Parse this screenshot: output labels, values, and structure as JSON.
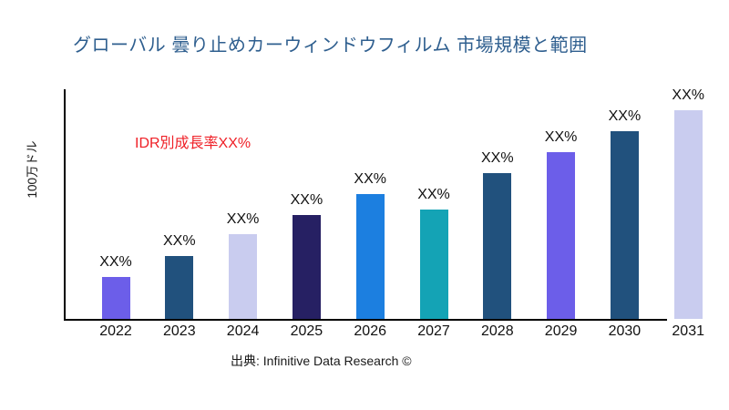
{
  "header": {
    "title": "グローバル 曇り止めカーウィンドウフィルム 市場規模と範囲",
    "title_color": "#2F5F8F"
  },
  "annotation": {
    "text": "IDR別成長率XX%",
    "color": "#EF1F26"
  },
  "footer": {
    "source": "出典: Infinitive Data Research ©"
  },
  "chart_data": {
    "type": "bar",
    "title": "グローバル 曇り止めカーウィンドウフィルム 市場規模と範囲",
    "xlabel": "",
    "ylabel": "100万ドル",
    "categories": [
      "2022",
      "2023",
      "2024",
      "2025",
      "2026",
      "2027",
      "2028",
      "2029",
      "2030",
      "2031"
    ],
    "values": [
      20,
      30,
      40.5,
      50,
      60,
      52.5,
      70,
      80,
      90,
      100
    ],
    "values_note": "relative bar heights, percent of tallest bar; actual figures masked as XX% on chart",
    "value_labels": [
      "XX%",
      "XX%",
      "XX%",
      "XX%",
      "XX%",
      "XX%",
      "XX%",
      "XX%",
      "XX%",
      "XX%"
    ],
    "bar_colors": [
      "#6C5EE9",
      "#21517D",
      "#C9CCEF",
      "#262063",
      "#1C7FE0",
      "#14A3B5",
      "#21517D",
      "#6C5EE9",
      "#21517D",
      "#C9CCEF"
    ],
    "annotation": "IDR別成長率XX%",
    "grid": false,
    "legend": false,
    "axis_color": "#000000",
    "background": "#ffffff"
  }
}
